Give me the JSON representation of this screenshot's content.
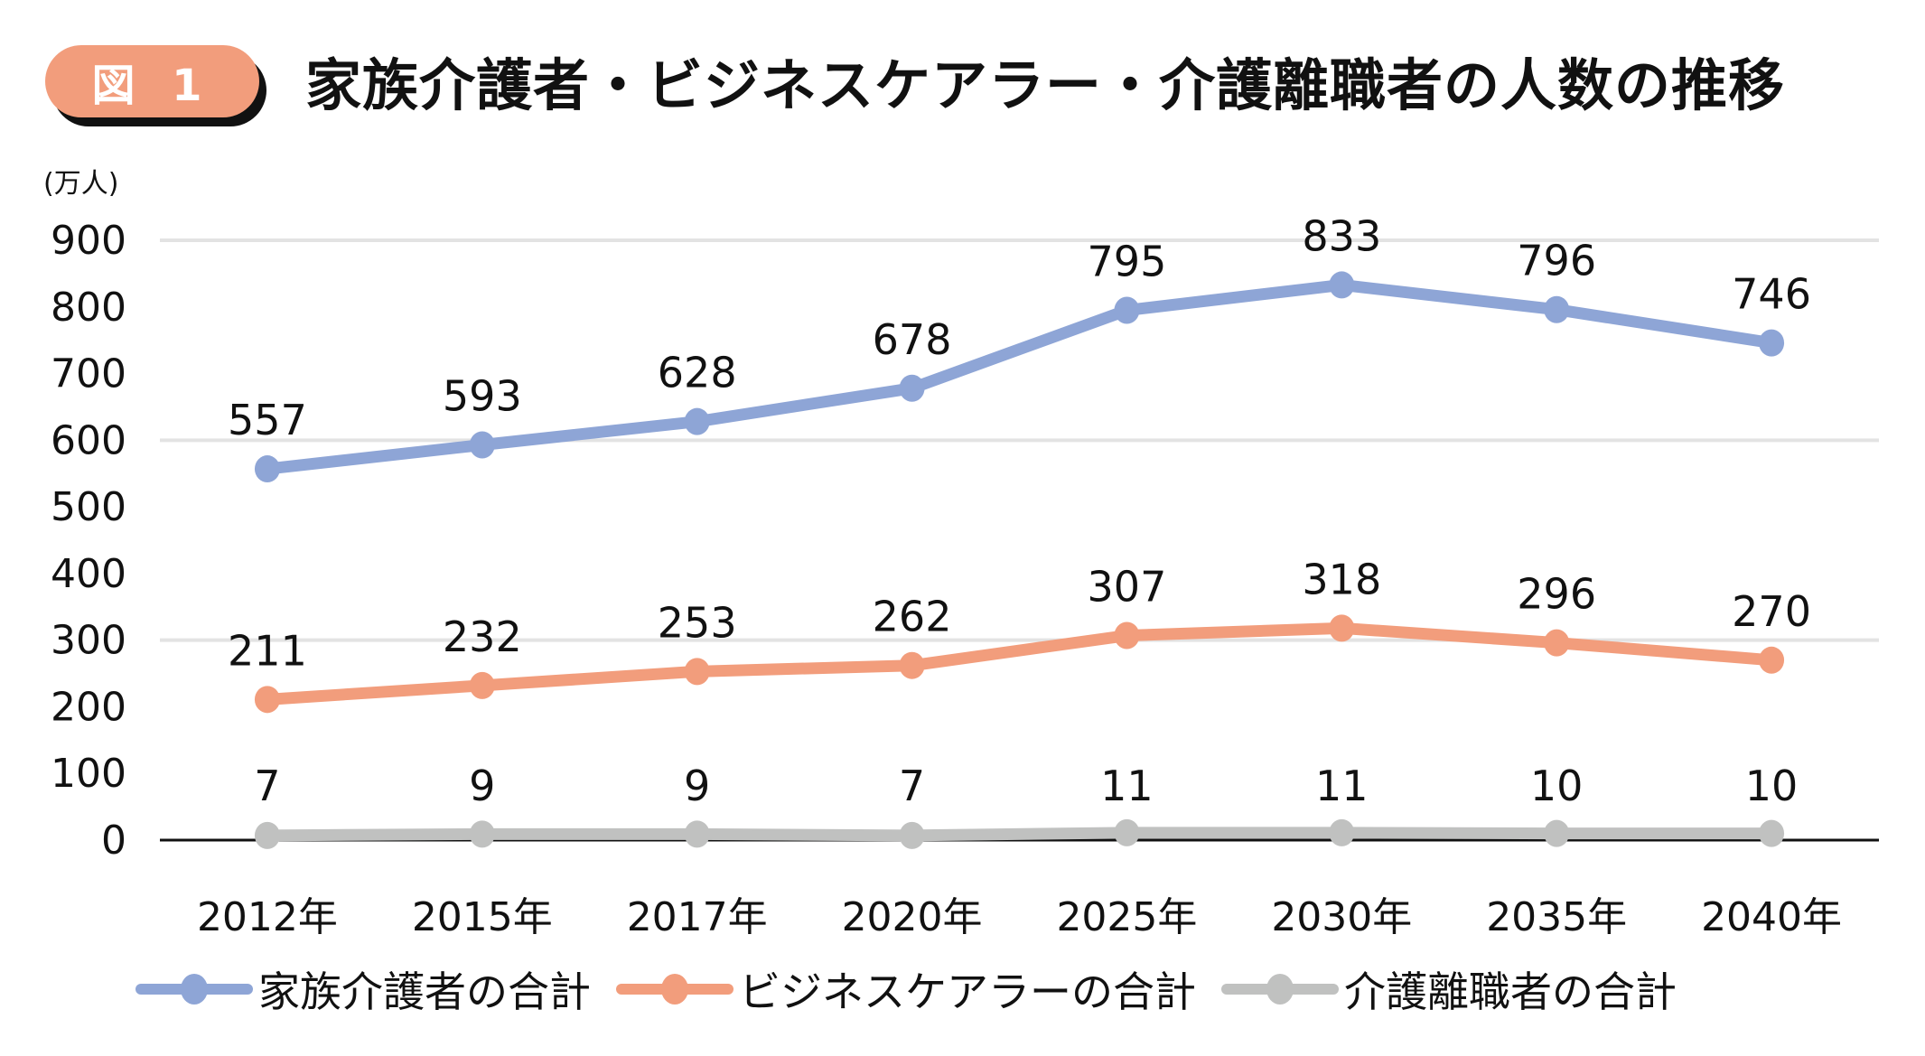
{
  "badge": "図 1",
  "title": "家族介護者・ビジネスケアラー・介護離職者の人数の推移",
  "chart_data": {
    "type": "line",
    "title": "家族介護者・ビジネスケアラー・介護離職者の人数の推移",
    "ylabel": "(万人)",
    "xlabel": "",
    "ylim": [
      0,
      900
    ],
    "yticks": [
      "0",
      "100",
      "200",
      "300",
      "400",
      "500",
      "600",
      "700",
      "800",
      "900"
    ],
    "gridlines": [
      300,
      600,
      900
    ],
    "categories": [
      "2012年",
      "2015年",
      "2017年",
      "2020年",
      "2025年",
      "2030年",
      "2035年",
      "2040年"
    ],
    "series": [
      {
        "name": "家族介護者の合計",
        "color": "#8ea5d6",
        "values": [
          557,
          593,
          628,
          678,
          795,
          833,
          796,
          746
        ]
      },
      {
        "name": "ビジネスケアラーの合計",
        "color": "#f29d7c",
        "values": [
          211,
          232,
          253,
          262,
          307,
          318,
          296,
          270
        ]
      },
      {
        "name": "介護離職者の合計",
        "color": "#c0c1c0",
        "values": [
          7,
          9,
          9,
          7,
          11,
          11,
          10,
          10
        ]
      }
    ],
    "legend_position": "bottom",
    "grid": true
  }
}
